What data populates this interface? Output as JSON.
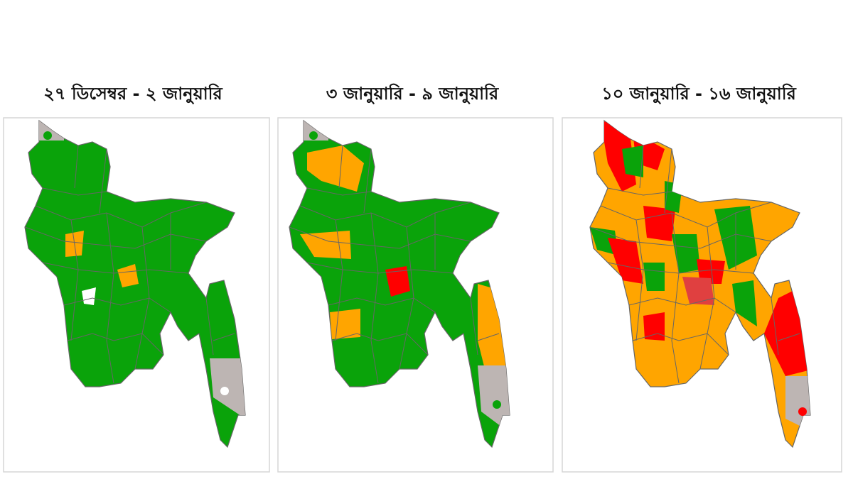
{
  "panels": [
    {
      "title": "২৭ ডিসেম্বর - ২ জানুয়ারি"
    },
    {
      "title": "৩ জানুয়ারি - ৯ জানুয়ারি"
    },
    {
      "title": "১০ জানুয়ারি - ১৬ জানুয়ারি"
    }
  ]
}
